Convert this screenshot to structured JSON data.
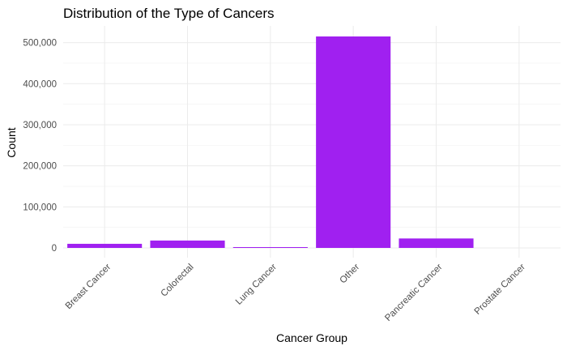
{
  "chart_data": {
    "type": "bar",
    "title": "Distribution of the Type of Cancers",
    "xlabel": "Cancer Group",
    "ylabel": "Count",
    "categories": [
      "Breast Cancer",
      "Colorectal",
      "Lung Cancer",
      "Other",
      "Pancreatic Cancer",
      "Prostate Cancer"
    ],
    "values": [
      10000,
      18000,
      2000,
      515000,
      23000,
      0
    ],
    "ylim": [
      0,
      540000
    ],
    "yticks": [
      0,
      100000,
      200000,
      300000,
      400000,
      500000
    ],
    "ytick_labels": [
      "0",
      "100,000",
      "200,000",
      "300,000",
      "400,000",
      "500,000"
    ],
    "bar_color": "#a020f0",
    "grid": true,
    "legend": "none"
  }
}
